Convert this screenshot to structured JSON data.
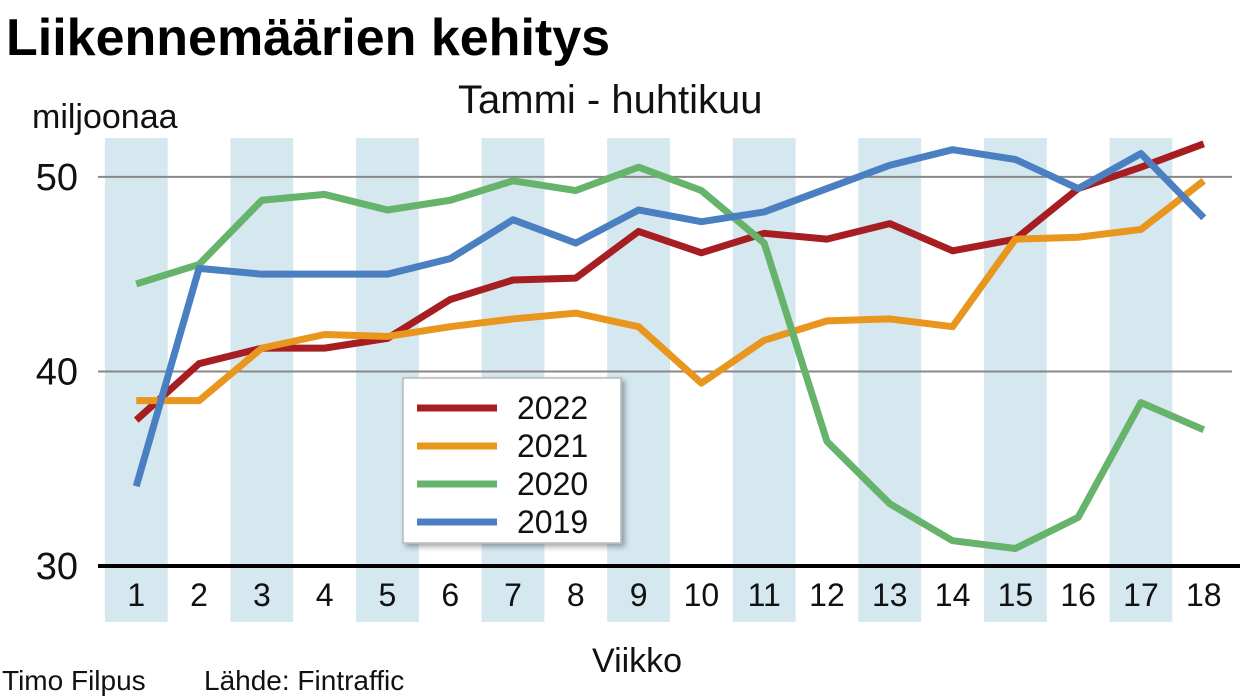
{
  "chart_data": {
    "type": "line",
    "title": "Liikennemäärien kehitys",
    "subtitle": "Tammi - huhtikuu",
    "ylabel": "miljoonaa",
    "xlabel": "Viikko",
    "x": [
      1,
      2,
      3,
      4,
      5,
      6,
      7,
      8,
      9,
      10,
      11,
      12,
      13,
      14,
      15,
      16,
      17,
      18
    ],
    "xlim": [
      0.55,
      18.45
    ],
    "ylim": [
      30,
      52
    ],
    "yticks": [
      30,
      40,
      50
    ],
    "grid": "horizontal at 40 and 50",
    "shading": "alternating odd weeks",
    "legend_position": "center-left",
    "series": [
      {
        "name": "2022",
        "color": "#a61e22",
        "values": [
          37.5,
          40.4,
          41.2,
          41.2,
          41.7,
          43.7,
          44.7,
          44.8,
          47.2,
          46.1,
          47.1,
          46.8,
          47.6,
          46.2,
          46.8,
          49.4,
          50.5,
          51.7
        ]
      },
      {
        "name": "2021",
        "color": "#e8961e",
        "values": [
          38.5,
          38.5,
          41.2,
          41.9,
          41.8,
          42.3,
          42.7,
          43.0,
          42.3,
          39.4,
          41.6,
          42.6,
          42.7,
          42.3,
          46.8,
          46.9,
          47.3,
          49.8
        ]
      },
      {
        "name": "2020",
        "color": "#66b36b",
        "values": [
          44.5,
          45.5,
          48.8,
          49.1,
          48.3,
          48.8,
          49.8,
          49.3,
          50.5,
          49.3,
          46.6,
          36.4,
          33.2,
          31.3,
          30.9,
          32.5,
          38.4,
          37.0
        ]
      },
      {
        "name": "2019",
        "color": "#4a7fc1",
        "values": [
          34.1,
          45.3,
          45.0,
          45.0,
          45.0,
          45.8,
          47.8,
          46.6,
          48.3,
          47.7,
          48.2,
          49.4,
          50.6,
          51.4,
          50.9,
          49.4,
          51.2,
          47.9
        ]
      }
    ]
  },
  "credit": {
    "author": "Timo Filpus",
    "source": "Lähde: Fintraffic"
  },
  "style": {
    "band_color": "#d5e7ef",
    "grid_color": "#888888",
    "axis_color": "#000000"
  }
}
